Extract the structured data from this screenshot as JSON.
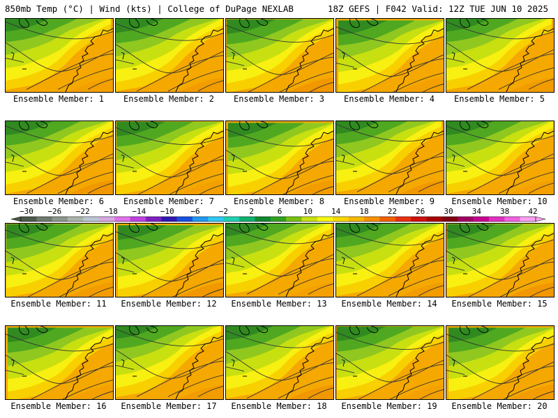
{
  "header": {
    "left": "850mb Temp (°C) | Wind (kts) | College of DuPage NEXLAB",
    "right": "18Z GEFS | F042 Valid: 12Z TUE JUN 10 2025"
  },
  "panels": [
    {
      "label": "Ensemble Member: 1"
    },
    {
      "label": "Ensemble Member: 2"
    },
    {
      "label": "Ensemble Member: 3"
    },
    {
      "label": "Ensemble Member: 4"
    },
    {
      "label": "Ensemble Member: 5"
    },
    {
      "label": "Ensemble Member: 6"
    },
    {
      "label": "Ensemble Member: 7"
    },
    {
      "label": "Ensemble Member: 8"
    },
    {
      "label": "Ensemble Member: 9"
    },
    {
      "label": "Ensemble Member: 10"
    },
    {
      "label": "Ensemble Member: 11"
    },
    {
      "label": "Ensemble Member: 12"
    },
    {
      "label": "Ensemble Member: 13"
    },
    {
      "label": "Ensemble Member: 14"
    },
    {
      "label": "Ensemble Member: 15"
    },
    {
      "label": "Ensemble Member: 16"
    },
    {
      "label": "Ensemble Member: 17"
    },
    {
      "label": "Ensemble Member: 18"
    },
    {
      "label": "Ensemble Member: 19"
    },
    {
      "label": "Ensemble Member: 20"
    }
  ],
  "colorbar": {
    "ticks": [
      "−30",
      "−26",
      "−22",
      "−18",
      "−14",
      "−10",
      "−6",
      "−2",
      "2",
      "6",
      "10",
      "14",
      "18",
      "22",
      "26",
      "30",
      "34",
      "38",
      "42"
    ],
    "colors": [
      "#4b5a4b",
      "#6e7a6e",
      "#8c968c",
      "#aab4aa",
      "#bcc6d2",
      "#d8a8e0",
      "#e070e8",
      "#c040e0",
      "#8020c0",
      "#3018b0",
      "#1850e0",
      "#2098f0",
      "#30c8f0",
      "#20d0b0",
      "#10b070",
      "#108830",
      "#30a020",
      "#78c010",
      "#c8e010",
      "#f8f810",
      "#f8d800",
      "#f8b800",
      "#f89000",
      "#f06000",
      "#e83010",
      "#d01010",
      "#a80000",
      "#800010",
      "#a00060",
      "#c80090",
      "#e030c0",
      "#f060e0",
      "#f8a0f0"
    ]
  }
}
